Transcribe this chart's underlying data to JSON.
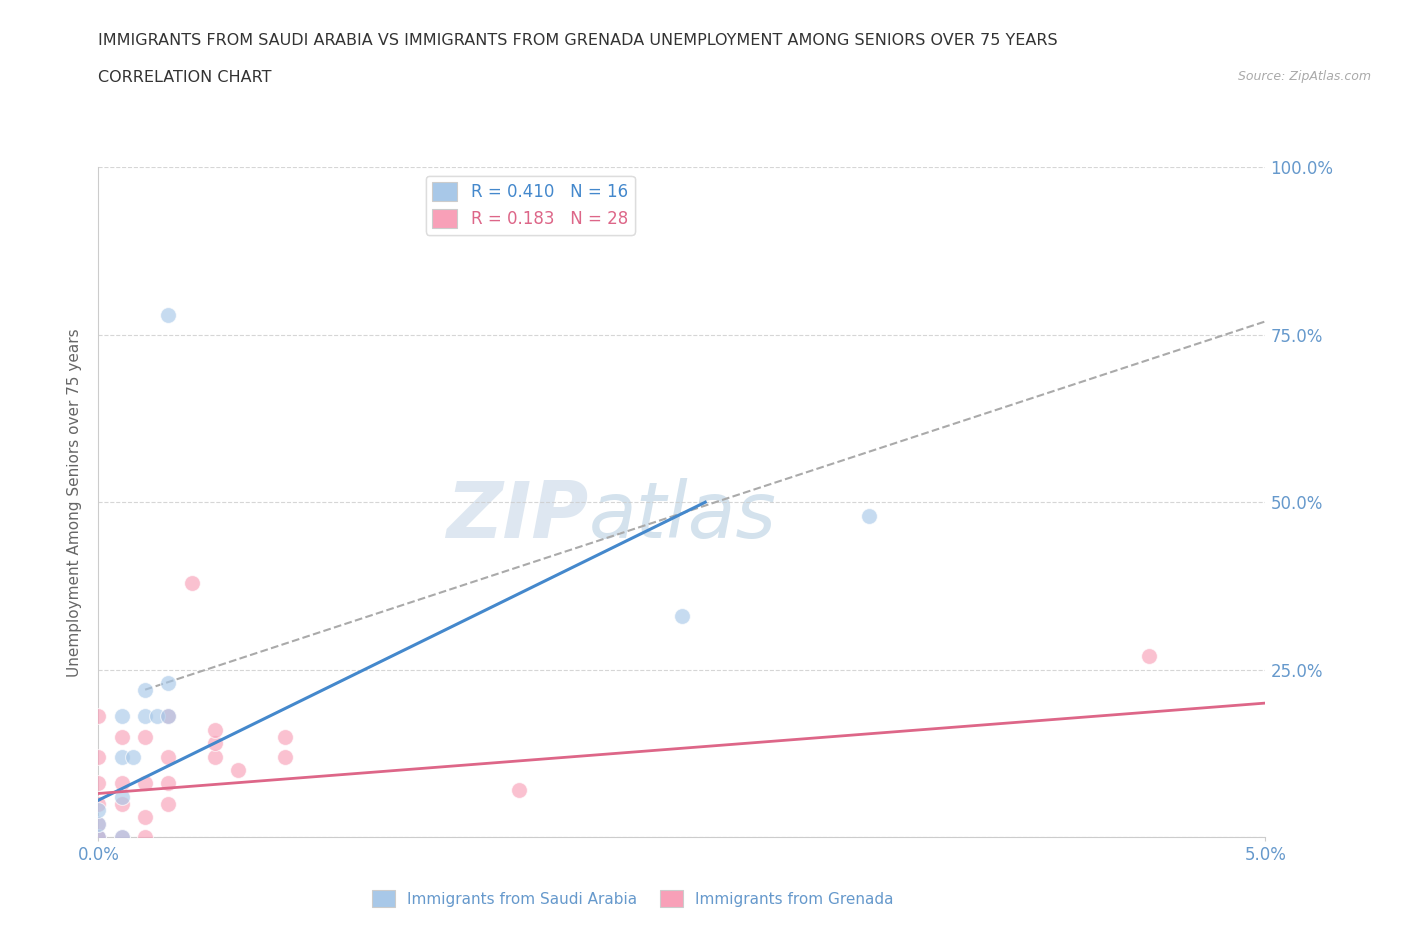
{
  "title_line1": "IMMIGRANTS FROM SAUDI ARABIA VS IMMIGRANTS FROM GRENADA UNEMPLOYMENT AMONG SENIORS OVER 75 YEARS",
  "title_line2": "CORRELATION CHART",
  "source": "Source: ZipAtlas.com",
  "ylabel": "Unemployment Among Seniors over 75 years",
  "xlim": [
    0.0,
    0.05
  ],
  "ylim": [
    0.0,
    1.0
  ],
  "xtick_positions": [
    0.0,
    0.05
  ],
  "xtick_labels": [
    "0.0%",
    "5.0%"
  ],
  "ytick_positions": [
    0.0,
    0.25,
    0.5,
    0.75,
    1.0
  ],
  "ytick_labels_right": [
    "",
    "25.0%",
    "50.0%",
    "75.0%",
    "100.0%"
  ],
  "watermark_zip": "ZIP",
  "watermark_atlas": "atlas",
  "legend_blue_r": "R = 0.410",
  "legend_blue_n": "N = 16",
  "legend_pink_r": "R = 0.183",
  "legend_pink_n": "N = 28",
  "blue_scatter_color": "#a8c8e8",
  "pink_scatter_color": "#f8a0b8",
  "blue_line_color": "#4488cc",
  "pink_line_color": "#dd6688",
  "dashed_line_color": "#aaaaaa",
  "background_color": "#ffffff",
  "grid_color": "#cccccc",
  "label_blue": "Immigrants from Saudi Arabia",
  "label_pink": "Immigrants from Grenada",
  "title_color": "#333333",
  "axis_label_color": "#666666",
  "tick_color": "#6699cc",
  "saudi_x": [
    0.0,
    0.0,
    0.0,
    0.001,
    0.001,
    0.001,
    0.001,
    0.0015,
    0.002,
    0.002,
    0.0025,
    0.003,
    0.003,
    0.003,
    0.025,
    0.033
  ],
  "saudi_y": [
    0.0,
    0.02,
    0.04,
    0.0,
    0.06,
    0.12,
    0.18,
    0.12,
    0.18,
    0.22,
    0.18,
    0.18,
    0.23,
    0.78,
    0.33,
    0.48
  ],
  "grenada_x": [
    0.0,
    0.0,
    0.0,
    0.0,
    0.0,
    0.0,
    0.0,
    0.001,
    0.001,
    0.001,
    0.001,
    0.002,
    0.002,
    0.002,
    0.002,
    0.003,
    0.003,
    0.003,
    0.003,
    0.004,
    0.005,
    0.005,
    0.005,
    0.006,
    0.008,
    0.008,
    0.018,
    0.045
  ],
  "grenada_y": [
    0.0,
    0.0,
    0.02,
    0.05,
    0.08,
    0.12,
    0.18,
    0.0,
    0.05,
    0.08,
    0.15,
    0.0,
    0.03,
    0.08,
    0.15,
    0.05,
    0.08,
    0.12,
    0.18,
    0.38,
    0.12,
    0.14,
    0.16,
    0.1,
    0.12,
    0.15,
    0.07,
    0.27
  ],
  "blue_trend_x": [
    0.0,
    0.026
  ],
  "blue_trend_y": [
    0.055,
    0.5
  ],
  "pink_trend_x": [
    0.0,
    0.05
  ],
  "pink_trend_y": [
    0.065,
    0.2
  ],
  "dashed_trend_x": [
    0.002,
    0.05
  ],
  "dashed_trend_y": [
    0.22,
    0.77
  ]
}
